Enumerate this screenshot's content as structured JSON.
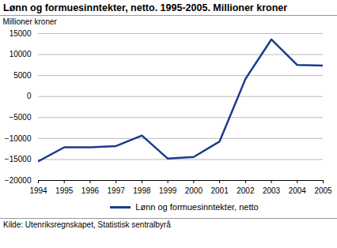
{
  "chart_data": {
    "type": "line",
    "title": "Lønn og formuesinntekter, netto. 1995-2005. Millioner kroner",
    "y_label": "Millioner kroner",
    "source": "Kilde: Utenriksregnskapet, Statistisk sentralbyrå",
    "x": [
      1994,
      1995,
      1996,
      1997,
      1998,
      1999,
      2000,
      2001,
      2002,
      2003,
      2004,
      2005
    ],
    "series": [
      {
        "name": "Lønn og formuesinntekter, netto",
        "color": "#1c3b8c",
        "values": [
          -15400,
          -12100,
          -12100,
          -11800,
          -9300,
          -14800,
          -14400,
          -10700,
          4200,
          13600,
          7500,
          7400
        ]
      }
    ],
    "xlim": [
      1994,
      2005
    ],
    "xticks": [
      1994,
      1995,
      1996,
      1997,
      1998,
      1999,
      2000,
      2001,
      2002,
      2003,
      2004,
      2005
    ],
    "ylim": [
      -20000,
      15000
    ],
    "yticks": [
      -20000,
      -15000,
      -10000,
      -5000,
      0,
      5000,
      10000,
      15000
    ],
    "grid": true,
    "legend": "bottom"
  }
}
